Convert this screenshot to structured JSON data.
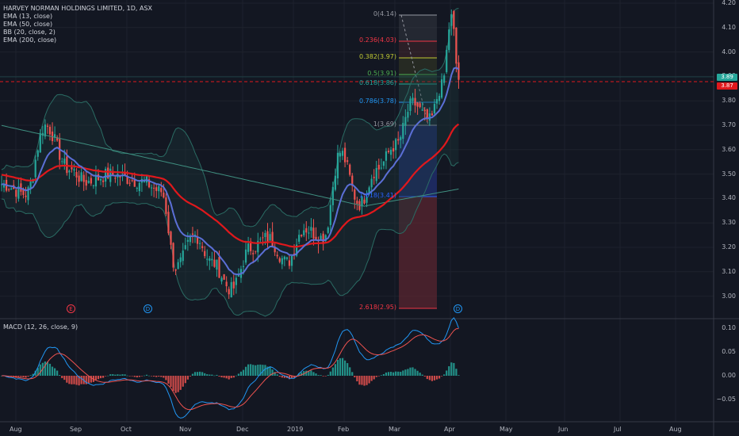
{
  "legend": {
    "symbol": "HARVEY NORMAN HOLDINGS LIMITED, 1D, ASX",
    "ema13": "EMA (13, close)",
    "ema50": "EMA (50, close)",
    "bb": "BB (20, close, 2)",
    "ema200": "EMA (200, close)"
  },
  "price_axis": [
    "4.20",
    "4.10",
    "4.00",
    "3.90",
    "3.80",
    "3.70",
    "3.60",
    "3.50",
    "3.40",
    "3.30",
    "3.20",
    "3.10",
    "3.00"
  ],
  "price_tags": {
    "last": "3.89",
    "line": "3.87"
  },
  "macd": {
    "label": "MACD (12, 26, close, 9)",
    "axis": [
      "0.10",
      "0.05",
      "0.00",
      "−0.05"
    ]
  },
  "time_axis": [
    "Aug",
    "Sep",
    "Oct",
    "Nov",
    "Dec",
    "2019",
    "Feb",
    "Mar",
    "Apr",
    "May",
    "Jun",
    "Jul",
    "Aug"
  ],
  "fib_levels": [
    {
      "label": "0(4.14)",
      "color": "#9598a1"
    },
    {
      "label": "0.236(4.03)",
      "color": "#f23645"
    },
    {
      "label": "0.382(3.97)",
      "color": "#c0ca33"
    },
    {
      "label": "0.5(3.91)",
      "color": "#4caf50"
    },
    {
      "label": "0.618(3.86)",
      "color": "#26a69a"
    },
    {
      "label": "0.786(3.78)",
      "color": "#2196f3"
    },
    {
      "label": "1(3.69)",
      "color": "#9598a1"
    },
    {
      "label": "1.618(3.41)",
      "color": "#2962ff"
    },
    {
      "label": "2.618(2.95)",
      "color": "#f23645"
    }
  ],
  "events": [
    {
      "label": "E",
      "color": "#f23645"
    },
    {
      "label": "D",
      "color": "#2196f3"
    },
    {
      "label": "D",
      "color": "#2196f3"
    }
  ],
  "colors": {
    "up": "#26a69a",
    "down": "#ef5350",
    "ema13": "#5b6fd6",
    "ema50": "#e0181c",
    "ema200": "#3f8f80",
    "bb": "#2a6b63"
  }
}
